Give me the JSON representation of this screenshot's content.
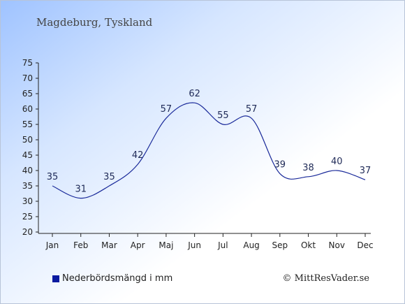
{
  "header": {
    "title": "Magdeburg, Tyskland"
  },
  "legend": {
    "label": "Nederbördsmängd i mm",
    "color": "#0a1aa0"
  },
  "credit": "© MittResVader.se",
  "chart_data": {
    "type": "line",
    "title": "Magdeburg, Tyskland",
    "categories": [
      "Jan",
      "Feb",
      "Mar",
      "Apr",
      "Maj",
      "Jun",
      "Jul",
      "Aug",
      "Sep",
      "Okt",
      "Nov",
      "Dec"
    ],
    "series": [
      {
        "name": "Nederbördsmängd i mm",
        "values": [
          35,
          31,
          35,
          42,
          57,
          62,
          55,
          57,
          39,
          38,
          40,
          37
        ],
        "color": "#1a2a9a"
      }
    ],
    "yticks": [
      20,
      25,
      30,
      35,
      40,
      45,
      50,
      55,
      60,
      65,
      70,
      75
    ],
    "ylim": [
      20,
      75
    ],
    "grid": false,
    "legend_position": "bottom-left"
  }
}
